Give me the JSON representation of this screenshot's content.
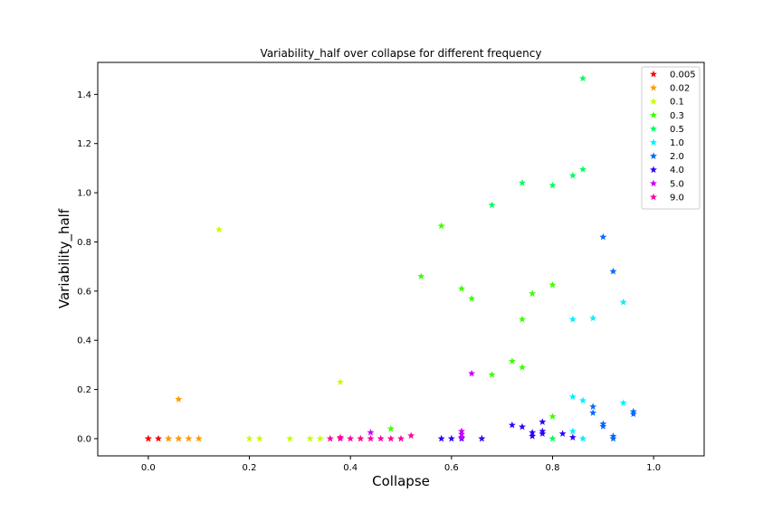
{
  "chart_data": {
    "type": "scatter",
    "title": "Variability_half over collapse for different frequency",
    "xlabel": "Collapse",
    "ylabel": "Variability_half",
    "xlim": [
      -0.1,
      1.1
    ],
    "ylim": [
      -0.07,
      1.53
    ],
    "xticks": [
      0.0,
      0.2,
      0.4,
      0.6,
      0.8,
      1.0
    ],
    "yticks": [
      0.0,
      0.2,
      0.4,
      0.6,
      0.8,
      1.0,
      1.2,
      1.4
    ],
    "grid": false,
    "legend_position": "top-right",
    "marker": "star",
    "series": [
      {
        "name": "0.005",
        "color": "#ff0000",
        "x": [
          0.0,
          0.0,
          0.02
        ],
        "y": [
          0.0,
          0.0,
          0.0
        ]
      },
      {
        "name": "0.02",
        "color": "#ff9a00",
        "x": [
          0.04,
          0.04,
          0.06,
          0.06,
          0.06,
          0.08,
          0.1
        ],
        "y": [
          0.0,
          0.0,
          0.0,
          0.0,
          0.16,
          0.0,
          0.0
        ]
      },
      {
        "name": "0.1",
        "color": "#c5ff00",
        "x": [
          0.14,
          0.2,
          0.22,
          0.28,
          0.32,
          0.34,
          0.38,
          0.42
        ],
        "y": [
          0.85,
          0.0,
          0.0,
          0.0,
          0.0,
          0.0,
          0.23,
          0.0
        ]
      },
      {
        "name": "0.3",
        "color": "#3bff00",
        "x": [
          0.48,
          0.54,
          0.58,
          0.62,
          0.64,
          0.66,
          0.68,
          0.72,
          0.74,
          0.74,
          0.76,
          0.8,
          0.8
        ],
        "y": [
          0.04,
          0.66,
          0.865,
          0.61,
          0.57,
          0.0,
          0.26,
          0.315,
          0.29,
          0.485,
          0.59,
          0.625,
          0.09
        ]
      },
      {
        "name": "0.5",
        "color": "#00ff5e",
        "x": [
          0.68,
          0.74,
          0.8,
          0.8,
          0.84,
          0.86,
          0.86
        ],
        "y": [
          0.95,
          1.04,
          1.03,
          0.0,
          1.07,
          1.095,
          1.465
        ]
      },
      {
        "name": "1.0",
        "color": "#00f0ff",
        "x": [
          0.84,
          0.84,
          0.84,
          0.86,
          0.86,
          0.88,
          0.94,
          0.94
        ],
        "y": [
          0.485,
          0.17,
          0.03,
          0.155,
          0.0,
          0.49,
          0.555,
          0.145
        ]
      },
      {
        "name": "2.0",
        "color": "#0068ff",
        "x": [
          0.88,
          0.88,
          0.9,
          0.9,
          0.9,
          0.92,
          0.92,
          0.92,
          0.96,
          0.96
        ],
        "y": [
          0.13,
          0.105,
          0.82,
          0.06,
          0.05,
          0.68,
          0.01,
          0.0,
          0.11,
          0.1
        ]
      },
      {
        "name": "4.0",
        "color": "#2a00ff",
        "x": [
          0.58,
          0.6,
          0.62,
          0.66,
          0.72,
          0.74,
          0.76,
          0.76,
          0.78,
          0.78,
          0.78,
          0.82,
          0.84
        ],
        "y": [
          0.0,
          0.0,
          0.0,
          0.0,
          0.055,
          0.048,
          0.025,
          0.01,
          0.068,
          0.03,
          0.02,
          0.02,
          0.005
        ]
      },
      {
        "name": "5.0",
        "color": "#c600ff",
        "x": [
          0.44,
          0.62,
          0.62,
          0.62,
          0.64
        ],
        "y": [
          0.025,
          0.03,
          0.018,
          0.005,
          0.265
        ]
      },
      {
        "name": "9.0",
        "color": "#ff00a0",
        "x": [
          0.36,
          0.38,
          0.38,
          0.4,
          0.42,
          0.44,
          0.46,
          0.48,
          0.5,
          0.52
        ],
        "y": [
          0.0,
          0.005,
          0.0,
          0.0,
          0.0,
          0.0,
          0.0,
          0.0,
          0.0,
          0.012
        ]
      }
    ]
  }
}
